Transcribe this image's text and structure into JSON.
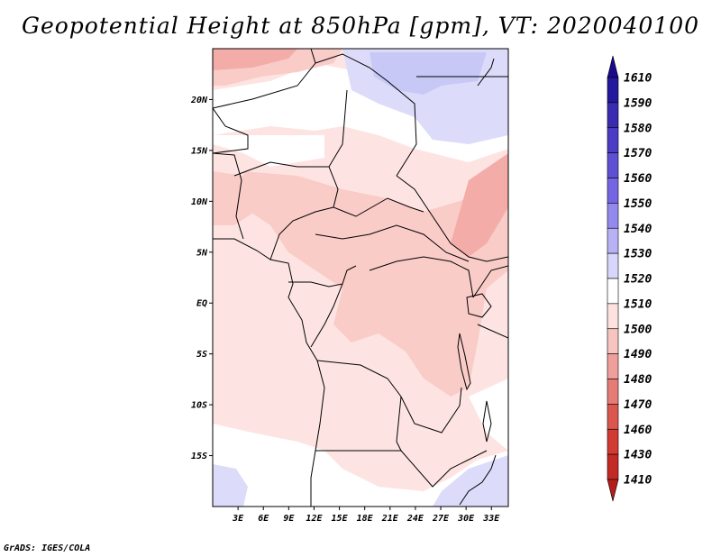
{
  "title": "Geopotential Height at 850hPa [gpm], VT: 2020040100",
  "credit": "GrADS: IGES/COLA",
  "map": {
    "lon_range": [
      0,
      35
    ],
    "lat_range": [
      -20,
      25
    ],
    "lon_ticks": [
      "3E",
      "6E",
      "9E",
      "12E",
      "15E",
      "18E",
      "21E",
      "24E",
      "27E",
      "30E",
      "33E"
    ],
    "lat_ticks": [
      "20N",
      "15N",
      "10N",
      "5N",
      "EQ",
      "5S",
      "10S",
      "15S"
    ]
  },
  "colorbar": {
    "levels": [
      "1610",
      "1590",
      "1580",
      "1570",
      "1560",
      "1550",
      "1540",
      "1530",
      "1520",
      "1510",
      "1500",
      "1490",
      "1480",
      "1470",
      "1460",
      "1430",
      "1410"
    ],
    "colors": [
      "#1a0a8c",
      "#24189c",
      "#3a2cb0",
      "#4a3cc4",
      "#5d50d4",
      "#7466e2",
      "#948aee",
      "#b8b2f4",
      "#d8d6fa",
      "#ffffff",
      "#fde2e0",
      "#f8c4c0",
      "#f0a09c",
      "#e67c76",
      "#dc5650",
      "#d23a34",
      "#c42a24",
      "#b41e1a"
    ]
  },
  "field_colors": {
    "blue_light": "#dcdcfa",
    "blue_mid": "#c8c8f6",
    "white": "#ffffff",
    "pink_light": "#fde4e2",
    "pink_mid": "#f9ccc8",
    "pink_dark": "#f4aca8"
  }
}
